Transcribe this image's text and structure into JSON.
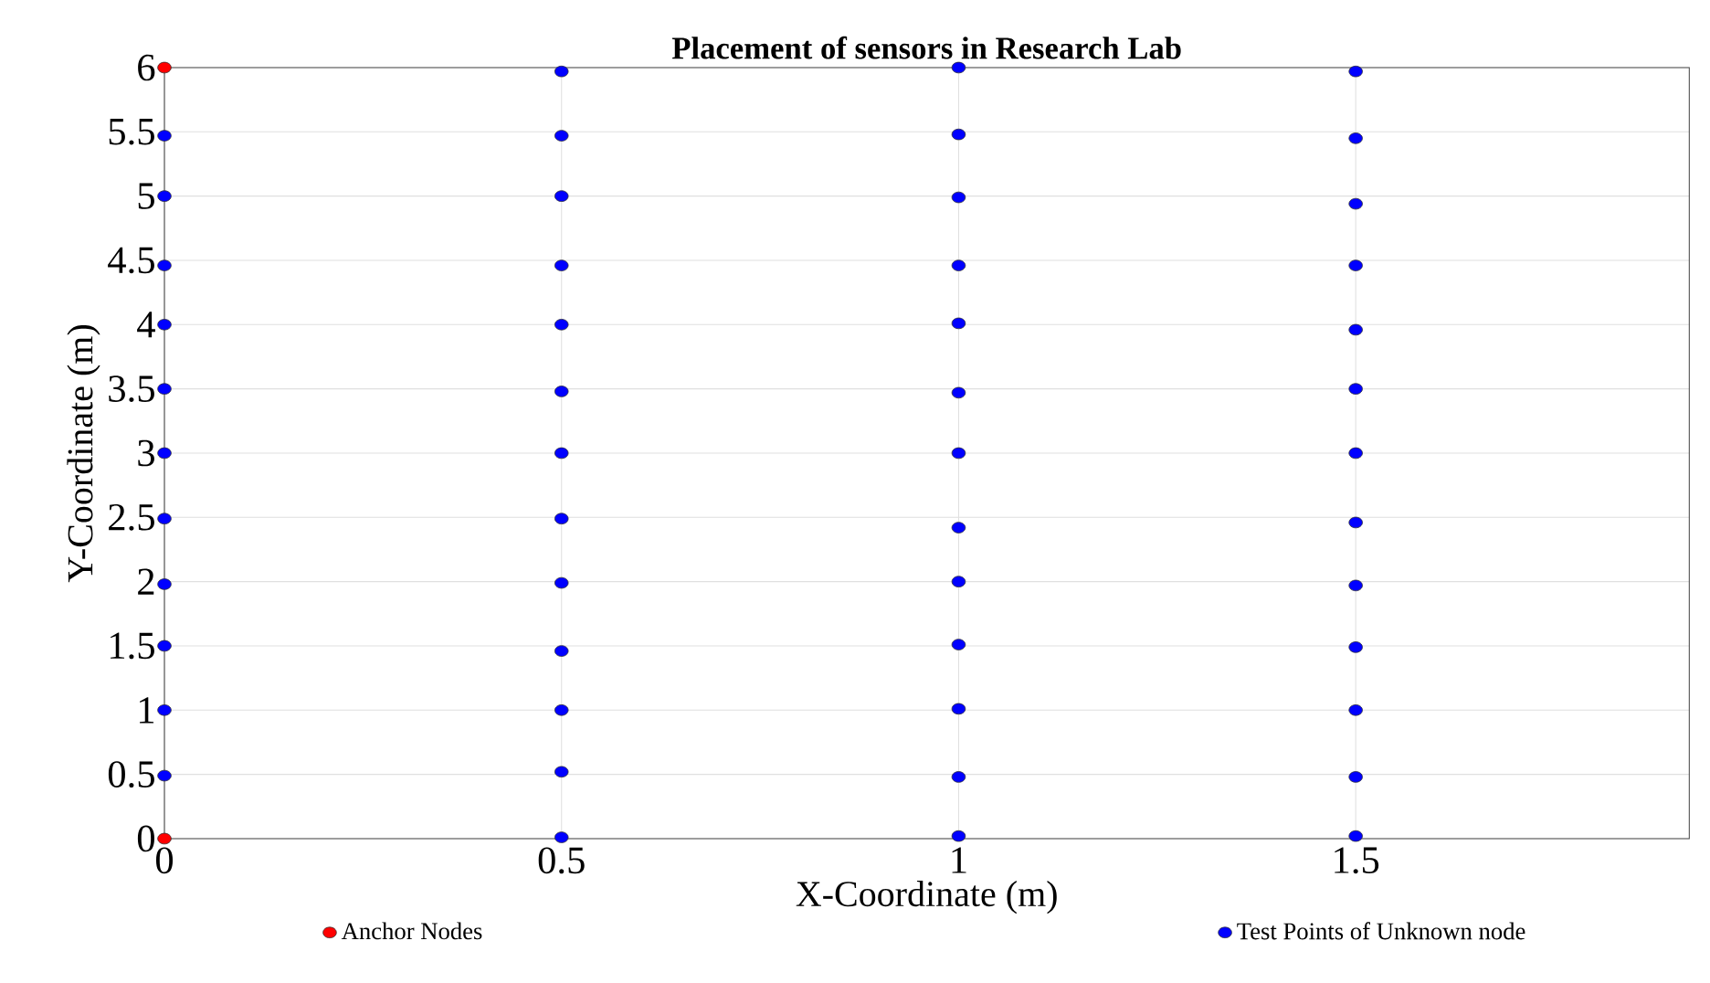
{
  "chart_data": {
    "type": "scatter",
    "title": "Placement of sensors in Research Lab",
    "xlabel": "X-Coordinate (m)",
    "ylabel": "Y-Coordinate (m)",
    "series": [
      {
        "name": "Anchor Nodes",
        "color": "#ff0000",
        "x": [
          0,
          0
        ],
        "values": [
          6,
          0
        ]
      },
      {
        "name": "Test Points of Unknown node",
        "color": "#0000ff",
        "x": [
          0,
          0,
          0,
          0,
          0,
          0,
          0,
          0,
          0,
          0,
          0,
          0.5,
          0.5,
          0.5,
          0.5,
          0.5,
          0.5,
          0.5,
          0.5,
          0.5,
          0.5,
          0.5,
          0.5,
          0.5,
          1,
          1,
          1,
          1,
          1,
          1,
          1,
          1,
          1,
          1,
          1,
          1,
          1,
          1.5,
          1.5,
          1.5,
          1.5,
          1.5,
          1.5,
          1.5,
          1.5,
          1.5,
          1.5,
          1.5,
          1.5,
          1.5
        ],
        "values": [
          5.47,
          5.0,
          4.46,
          4.0,
          3.5,
          3.0,
          2.49,
          1.98,
          1.5,
          1.0,
          0.49,
          5.97,
          5.47,
          5.0,
          4.46,
          4.0,
          3.48,
          3.0,
          2.49,
          1.99,
          1.46,
          1.0,
          0.52,
          0.01,
          6.0,
          5.48,
          4.99,
          4.46,
          4.01,
          3.47,
          3.0,
          2.42,
          2.0,
          1.51,
          1.01,
          0.48,
          0.02,
          5.97,
          5.45,
          4.94,
          4.46,
          3.96,
          3.5,
          3.0,
          2.46,
          1.97,
          1.49,
          1.0,
          0.48,
          0.02
        ]
      }
    ],
    "xlim": [
      0,
      1.92
    ],
    "ylim": [
      0,
      6
    ],
    "xticks": [
      0,
      0.5,
      1,
      1.5
    ],
    "yticks": [
      0,
      0.5,
      1,
      1.5,
      2,
      2.5,
      3,
      3.5,
      4,
      4.5,
      5,
      5.5,
      6
    ],
    "grid": true,
    "legend": "bottom",
    "marker": "circle"
  }
}
